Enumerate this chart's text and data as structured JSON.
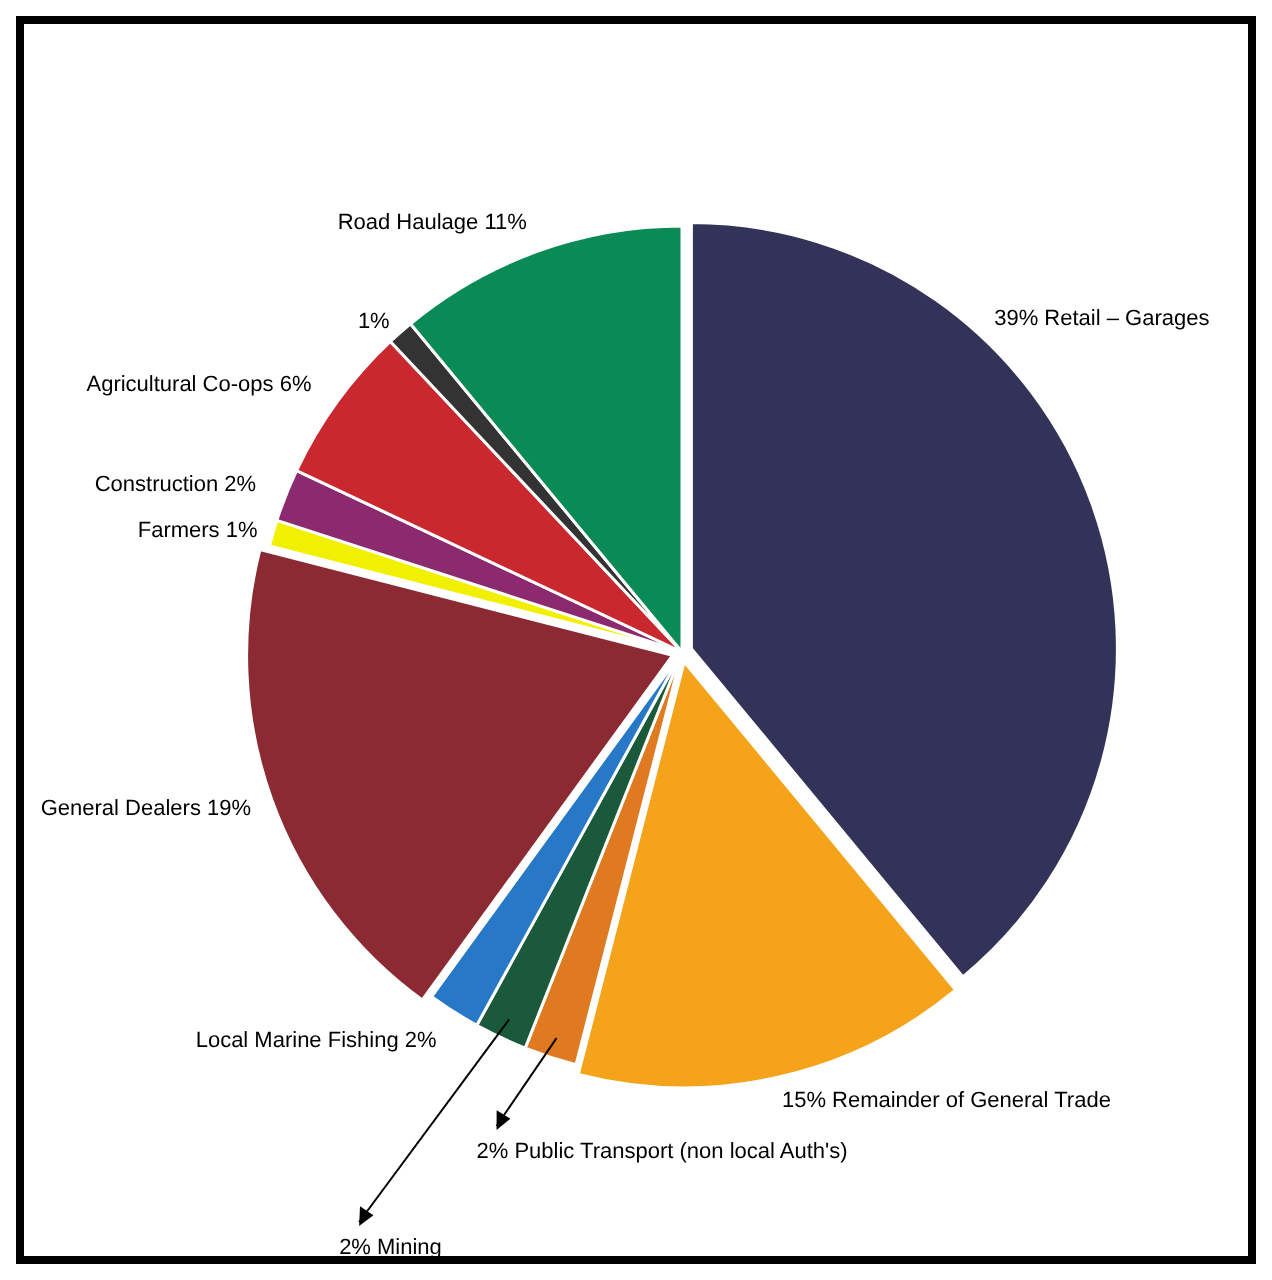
{
  "chart_data": {
    "type": "pie",
    "categories": [
      "39% Retail – Garages",
      "15% Remainder of General Trade",
      "2% Public Transport (non local Auth's)",
      "2% Mining",
      "Local Marine Fishing 2%",
      "General Dealers 19%",
      "Farmers 1%",
      "Construction 2%",
      "Agricultural Co-ops 6%",
      "1%",
      "Road Haulage 11%"
    ],
    "values": [
      39,
      15,
      2,
      2,
      2,
      19,
      1,
      2,
      6,
      1,
      11
    ],
    "colors": [
      "#33335a",
      "#f5a31a",
      "#e07a20",
      "#1a5a3a",
      "#2878c8",
      "#8b2a33",
      "#f0f000",
      "#8b2a6e",
      "#c8282e",
      "#333333",
      "#0a8a55"
    ]
  }
}
